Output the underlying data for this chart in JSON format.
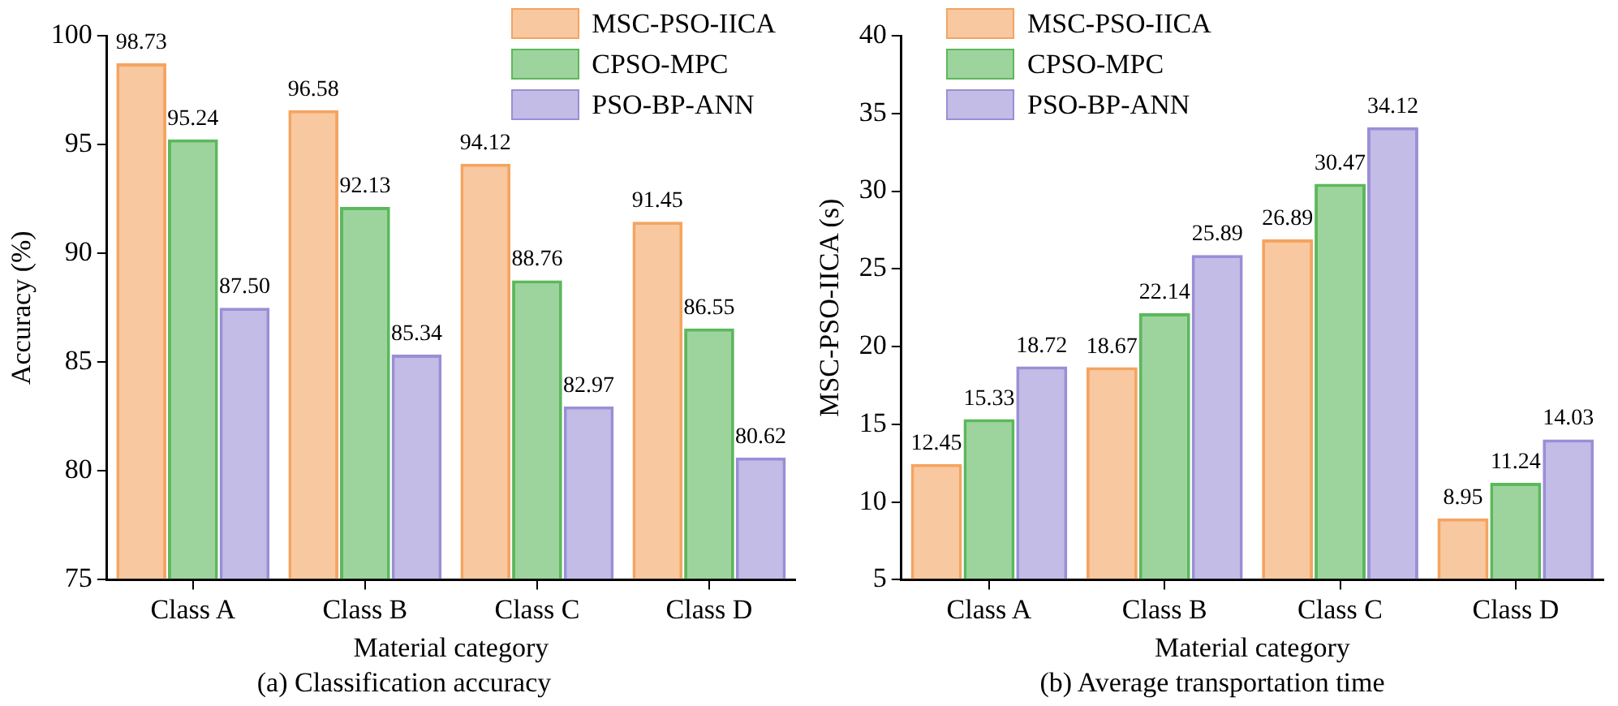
{
  "chart_data": [
    {
      "type": "bar",
      "xlabel": "Material category",
      "ylabel": "Accuracy (%)",
      "annotations": [
        "(a) Classification accuracy"
      ],
      "categories": [
        "Class A",
        "Class B",
        "Class C",
        "Class D"
      ],
      "series": [
        {
          "name": "MSC-PSO-IICA",
          "color": "#f4a460",
          "values": [
            98.73,
            96.58,
            94.12,
            91.45
          ],
          "value_labels": [
            "98.73",
            "96.58",
            "94.12",
            "91.45"
          ]
        },
        {
          "name": "CPSO-MPC",
          "color": "#5cb85c",
          "values": [
            95.24,
            92.13,
            88.76,
            86.55
          ],
          "value_labels": [
            "95.24",
            "92.13",
            "88.76",
            "86.55"
          ]
        },
        {
          "name": "PSO-BP-ANN",
          "color": "#9a8fd6",
          "values": [
            87.5,
            85.34,
            82.97,
            80.62
          ],
          "value_labels": [
            "87.50",
            "85.34",
            "82.97",
            "80.62"
          ]
        }
      ],
      "ylim": [
        75,
        100
      ],
      "yticks": [
        75,
        80,
        85,
        90,
        95,
        100
      ],
      "grid": false,
      "legend": "top right"
    },
    {
      "type": "bar",
      "xlabel": "Material category",
      "ylabel": "MSC-PSO-IICA (s)",
      "annotations": [
        "(b) Average transportation time"
      ],
      "categories": [
        "Class A",
        "Class B",
        "Class C",
        "Class D"
      ],
      "series": [
        {
          "name": "MSC-PSO-IICA",
          "color": "#f4a460",
          "values": [
            12.45,
            18.67,
            26.89,
            8.95
          ],
          "value_labels": [
            "12.45",
            "18.67",
            "26.89",
            "8.95"
          ]
        },
        {
          "name": "CPSO-MPC",
          "color": "#5cb85c",
          "values": [
            15.33,
            22.14,
            30.47,
            11.24
          ],
          "value_labels": [
            "15.33",
            "22.14",
            "30.47",
            "11.24"
          ]
        },
        {
          "name": "PSO-BP-ANN",
          "color": "#9a8fd6",
          "values": [
            18.72,
            25.89,
            34.12,
            14.03
          ],
          "value_labels": [
            "18.72",
            "25.89",
            "34.12",
            "14.03"
          ]
        }
      ],
      "ylim": [
        5,
        40
      ],
      "yticks": [
        5,
        10,
        15,
        20,
        25,
        30,
        35,
        40
      ],
      "grid": false,
      "legend": "top left"
    }
  ]
}
